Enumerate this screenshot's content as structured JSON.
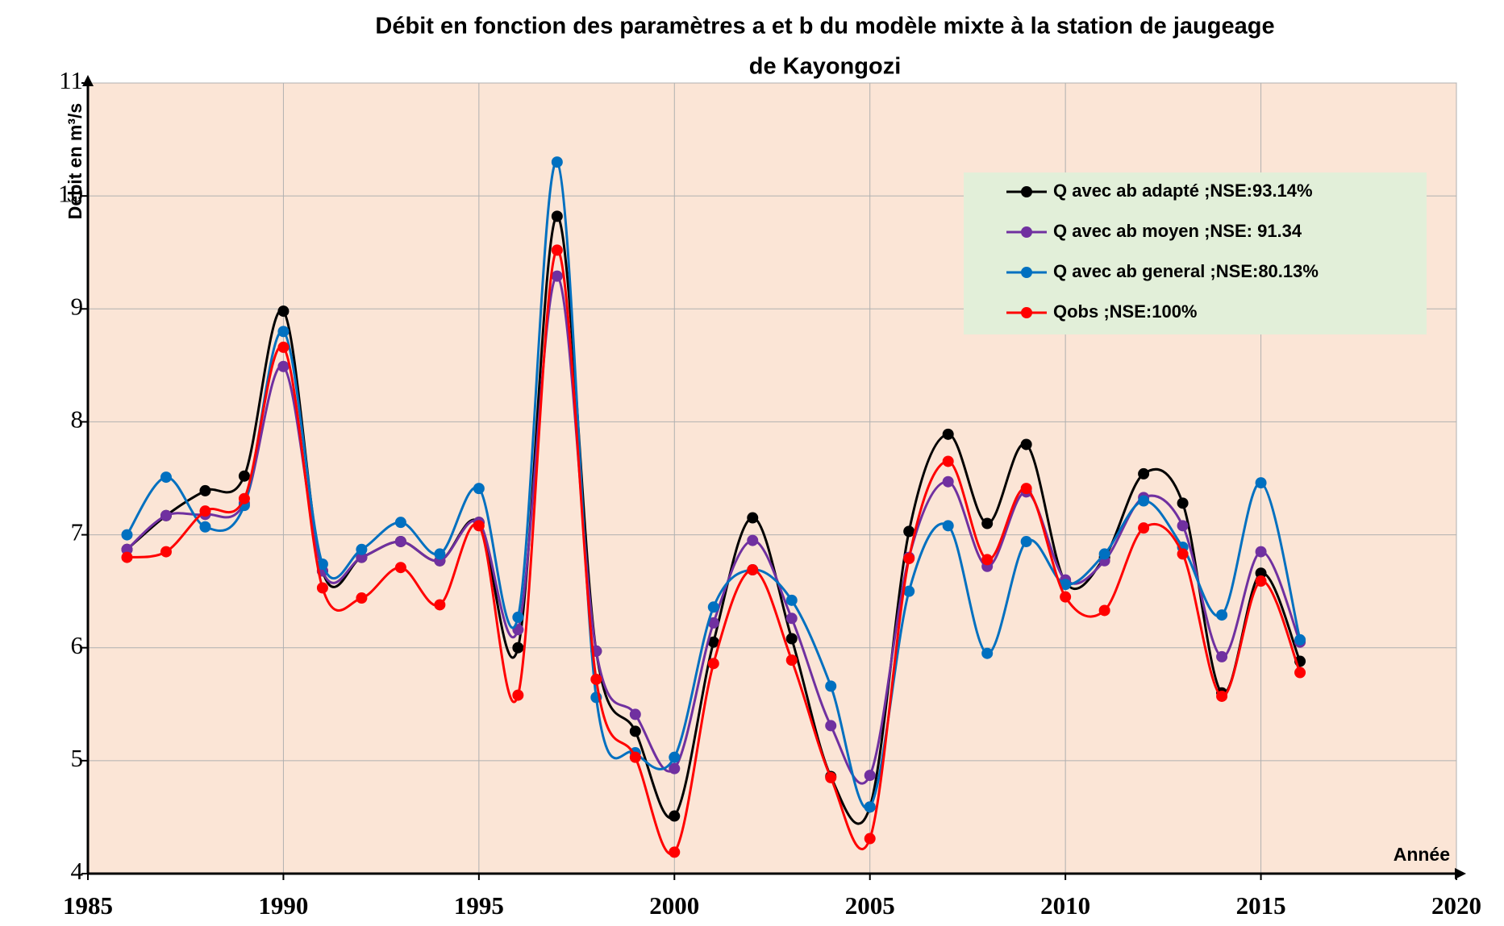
{
  "chart_data": {
    "type": "line",
    "title": [
      "Débit en fonction des paramètres a et b du modèle mixte à la station de jaugeage",
      "de Kayongozi"
    ],
    "y_label": "Débit en m³/s",
    "x_label": "Année",
    "x": [
      1986,
      1987,
      1988,
      1989,
      1990,
      1991,
      1992,
      1993,
      1994,
      1995,
      1996,
      1997,
      1998,
      1999,
      2000,
      2001,
      2002,
      2003,
      2004,
      2005,
      2006,
      2007,
      2008,
      2009,
      2010,
      2011,
      2012,
      2013,
      2014,
      2015,
      2016
    ],
    "series": [
      {
        "name": "Q avec ab adapté ;NSE:93.14%",
        "color": "#000000",
        "values": [
          6.87,
          7.17,
          7.39,
          7.52,
          8.98,
          6.68,
          6.8,
          6.94,
          6.77,
          7.11,
          6.0,
          9.82,
          5.97,
          5.26,
          4.51,
          6.05,
          7.15,
          6.08,
          4.86,
          4.59,
          7.03,
          7.89,
          7.1,
          7.8,
          6.58,
          6.8,
          7.54,
          7.28,
          5.6,
          6.66,
          5.88
        ]
      },
      {
        "name": "Q avec ab moyen ;NSE: 91.34",
        "color": "#7030a0",
        "values": [
          6.87,
          7.17,
          7.18,
          7.28,
          8.49,
          6.68,
          6.8,
          6.94,
          6.77,
          7.11,
          6.16,
          9.29,
          5.97,
          5.41,
          4.93,
          6.22,
          6.95,
          6.26,
          5.31,
          4.87,
          6.8,
          7.47,
          6.72,
          7.38,
          6.6,
          6.77,
          7.33,
          7.08,
          5.92,
          6.85,
          6.05
        ]
      },
      {
        "name": "Q avec ab general ;NSE:80.13%",
        "color": "#0070c0",
        "values": [
          7.0,
          7.51,
          7.07,
          7.26,
          8.8,
          6.74,
          6.87,
          7.11,
          6.83,
          7.41,
          6.27,
          10.3,
          5.56,
          5.07,
          5.03,
          6.36,
          6.69,
          6.42,
          5.66,
          4.59,
          6.5,
          7.08,
          5.95,
          6.94,
          6.56,
          6.83,
          7.3,
          6.89,
          6.29,
          7.46,
          6.07
        ]
      },
      {
        "name": "Qobs ;NSE:100%",
        "color": "#ff0000",
        "values": [
          6.8,
          6.85,
          7.21,
          7.32,
          8.66,
          6.53,
          6.44,
          6.71,
          6.38,
          7.08,
          5.58,
          9.52,
          5.72,
          5.03,
          4.19,
          5.86,
          6.69,
          5.89,
          4.85,
          4.31,
          6.79,
          7.65,
          6.78,
          7.41,
          6.45,
          6.33,
          7.06,
          6.83,
          5.57,
          6.59,
          5.78
        ]
      }
    ],
    "xlim": [
      1985,
      2020
    ],
    "xticks": [
      1985,
      1990,
      1995,
      2000,
      2005,
      2010,
      2015,
      2020
    ],
    "ylim": [
      4,
      11
    ],
    "yticks": [
      4,
      5,
      6,
      7,
      8,
      9,
      10,
      11
    ],
    "grid": true,
    "legend": "upper right",
    "smooth": true,
    "plot_background": "#fbe5d6",
    "legend_background": "#e2efd9"
  }
}
